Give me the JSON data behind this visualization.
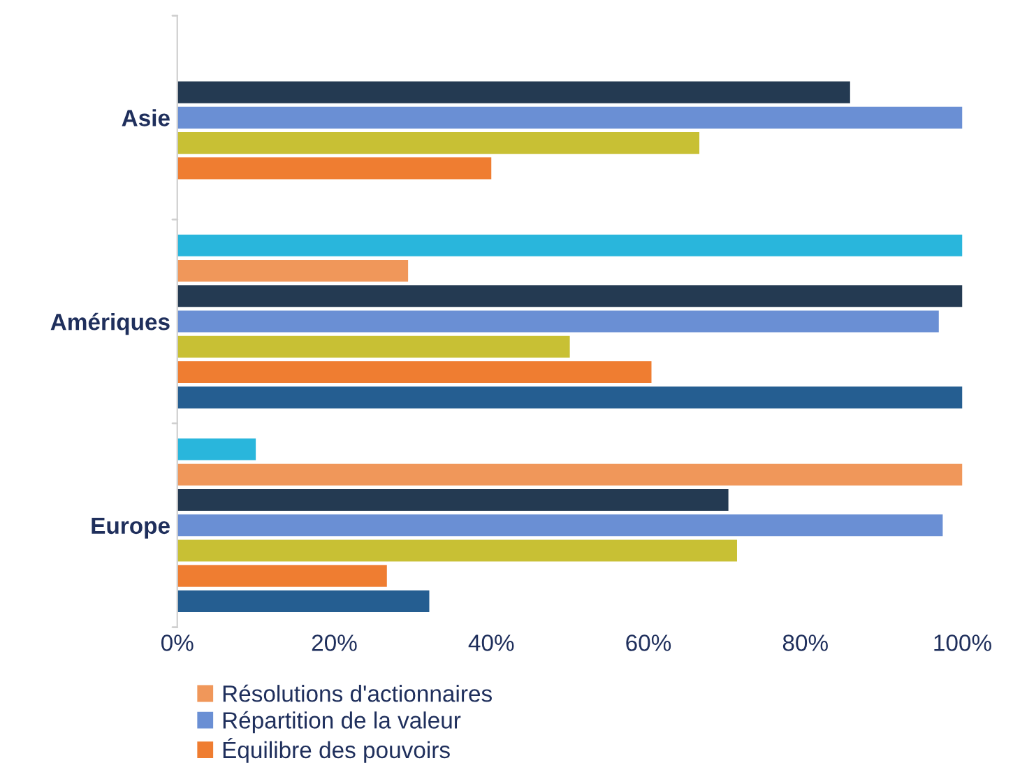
{
  "chart_data": {
    "type": "bar",
    "orientation": "horizontal",
    "categories": [
      "Asie",
      "Amériques",
      "Europe"
    ],
    "series": [
      {
        "color": "#29b6dc",
        "values": [
          null,
          100,
          10
        ]
      },
      {
        "name": "Résolutions d'actionnaires",
        "color": "#f0975a",
        "values": [
          null,
          29.4,
          100
        ]
      },
      {
        "color": "#243a52",
        "values": [
          85.7,
          100,
          70.2
        ]
      },
      {
        "name": "Répartition de la valeur",
        "color": "#6a8fd4",
        "values": [
          100,
          97,
          97.5
        ]
      },
      {
        "color": "#c8c034",
        "values": [
          66.5,
          50,
          71.3
        ]
      },
      {
        "name": "Équilibre des pouvoirs",
        "color": "#ef7d31",
        "values": [
          40,
          60.4,
          26.7
        ]
      },
      {
        "color": "#255e91",
        "values": [
          null,
          100,
          32.1
        ]
      }
    ],
    "xlim": [
      0,
      100
    ],
    "xticks": [
      {
        "value": 0,
        "label": "0%"
      },
      {
        "value": 20,
        "label": "20%"
      },
      {
        "value": 40,
        "label": "40%"
      },
      {
        "value": 60,
        "label": "60%"
      },
      {
        "value": 80,
        "label": "80%"
      },
      {
        "value": 100,
        "label": "100%"
      }
    ],
    "grid": false,
    "legend": "bottom"
  }
}
